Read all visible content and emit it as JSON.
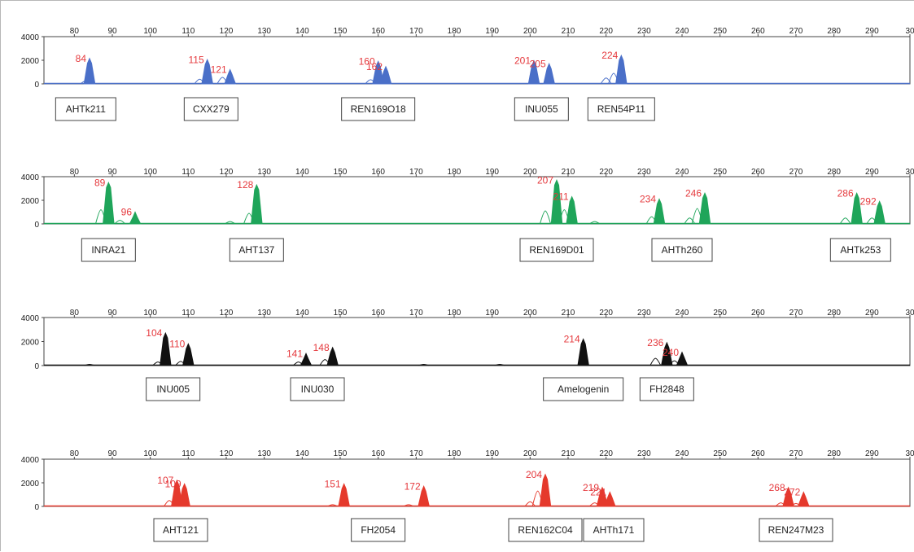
{
  "chart_data": [
    {
      "type": "area",
      "color": "#4a6fc8",
      "xlim": [
        72,
        300
      ],
      "ylim": [
        0,
        4000
      ],
      "xticks": [
        "80",
        "90",
        "100",
        "110",
        "120",
        "130",
        "140",
        "150",
        "160",
        "170",
        "180",
        "190",
        "200",
        "210",
        "220",
        "230",
        "240",
        "250",
        "260",
        "270",
        "280",
        "290",
        "30"
      ],
      "yticks": [
        "4000",
        "2000",
        "0"
      ],
      "peaks": [
        {
          "x": 84,
          "label": "84",
          "height": 2150,
          "filled": true
        },
        {
          "x": 115,
          "label": "115",
          "height": 2050,
          "filled": true
        },
        {
          "x": 121,
          "label": "121",
          "height": 1200,
          "filled": true
        },
        {
          "x": 160,
          "label": "160",
          "height": 1900,
          "filled": true
        },
        {
          "x": 162,
          "label": "162",
          "height": 1450,
          "filled": true
        },
        {
          "x": 201,
          "label": "201",
          "height": 1950,
          "filled": true
        },
        {
          "x": 205,
          "label": "205",
          "height": 1700,
          "filled": true
        },
        {
          "x": 224,
          "label": "224",
          "height": 2400,
          "filled": true
        }
      ],
      "minor_peaks": [
        {
          "x": 83,
          "height": 250
        },
        {
          "x": 113,
          "height": 400
        },
        {
          "x": 119,
          "height": 550
        },
        {
          "x": 158,
          "height": 350
        },
        {
          "x": 222,
          "height": 900
        },
        {
          "x": 220,
          "height": 500
        }
      ],
      "markers": [
        {
          "label": "AHTk211",
          "x": 83
        },
        {
          "label": "CXX279",
          "x": 116
        },
        {
          "label": "REN169O18",
          "x": 160
        },
        {
          "label": "INU055",
          "x": 203
        },
        {
          "label": "REN54P11",
          "x": 224
        }
      ]
    },
    {
      "type": "area",
      "color": "#1fa55a",
      "xlim": [
        72,
        300
      ],
      "ylim": [
        0,
        4000
      ],
      "xticks": [
        "80",
        "90",
        "100",
        "110",
        "120",
        "130",
        "140",
        "150",
        "160",
        "170",
        "180",
        "190",
        "200",
        "210",
        "220",
        "230",
        "240",
        "250",
        "260",
        "270",
        "280",
        "290",
        "30"
      ],
      "yticks": [
        "4000",
        "2000",
        "0"
      ],
      "peaks": [
        {
          "x": 89,
          "label": "89",
          "height": 3500,
          "filled": true
        },
        {
          "x": 96,
          "label": "96",
          "height": 1000,
          "filled": true
        },
        {
          "x": 128,
          "label": "128",
          "height": 3300,
          "filled": true
        },
        {
          "x": 207,
          "label": "207",
          "height": 3700,
          "filled": true
        },
        {
          "x": 211,
          "label": "211",
          "height": 2300,
          "filled": true
        },
        {
          "x": 234,
          "label": "234",
          "height": 2100,
          "filled": true
        },
        {
          "x": 246,
          "label": "246",
          "height": 2600,
          "filled": true
        },
        {
          "x": 286,
          "label": "286",
          "height": 2600,
          "filled": true
        },
        {
          "x": 292,
          "label": "292",
          "height": 1900,
          "filled": true
        }
      ],
      "minor_peaks": [
        {
          "x": 87,
          "height": 1200
        },
        {
          "x": 92,
          "height": 300
        },
        {
          "x": 126,
          "height": 900
        },
        {
          "x": 121,
          "height": 200
        },
        {
          "x": 204,
          "height": 1100
        },
        {
          "x": 209,
          "height": 1200
        },
        {
          "x": 232,
          "height": 600
        },
        {
          "x": 244,
          "height": 1300
        },
        {
          "x": 242,
          "height": 500
        },
        {
          "x": 283,
          "height": 500
        },
        {
          "x": 290,
          "height": 500
        },
        {
          "x": 217,
          "height": 200
        }
      ],
      "markers": [
        {
          "label": "INRA21",
          "x": 89
        },
        {
          "label": "AHT137",
          "x": 128
        },
        {
          "label": "REN169D01",
          "x": 207
        },
        {
          "label": "AHTh260",
          "x": 240
        },
        {
          "label": "AHTk253",
          "x": 287
        }
      ]
    },
    {
      "type": "area",
      "color": "#111111",
      "xlim": [
        72,
        300
      ],
      "ylim": [
        0,
        4000
      ],
      "xticks": [
        "80",
        "90",
        "100",
        "110",
        "120",
        "130",
        "140",
        "150",
        "160",
        "170",
        "180",
        "190",
        "200",
        "210",
        "220",
        "230",
        "240",
        "250",
        "260",
        "270",
        "280",
        "290",
        "30"
      ],
      "yticks": [
        "4000",
        "2000",
        "0"
      ],
      "peaks": [
        {
          "x": 104,
          "label": "104",
          "height": 2700,
          "filled": true
        },
        {
          "x": 110,
          "label": "110",
          "height": 1800,
          "filled": true
        },
        {
          "x": 141,
          "label": "141",
          "height": 1000,
          "filled": true
        },
        {
          "x": 148,
          "label": "148",
          "height": 1500,
          "filled": true
        },
        {
          "x": 214,
          "label": "214",
          "height": 2200,
          "filled": true
        },
        {
          "x": 236,
          "label": "236",
          "height": 1900,
          "filled": true
        },
        {
          "x": 240,
          "label": "240",
          "height": 1100,
          "filled": true
        }
      ],
      "minor_peaks": [
        {
          "x": 102,
          "height": 300
        },
        {
          "x": 108,
          "height": 350
        },
        {
          "x": 139,
          "height": 300
        },
        {
          "x": 146,
          "height": 500
        },
        {
          "x": 233,
          "height": 600
        },
        {
          "x": 238,
          "height": 400
        },
        {
          "x": 84,
          "height": 100
        },
        {
          "x": 172,
          "height": 100
        },
        {
          "x": 192,
          "height": 100
        }
      ],
      "markers": [
        {
          "label": "INU005",
          "x": 106
        },
        {
          "label": "INU030",
          "x": 144
        },
        {
          "label": "Amelogenin",
          "x": 214
        },
        {
          "label": "FH2848",
          "x": 236
        }
      ]
    },
    {
      "type": "area",
      "color": "#e5392c",
      "xlim": [
        72,
        300
      ],
      "ylim": [
        0,
        4000
      ],
      "xticks": [
        "80",
        "90",
        "100",
        "110",
        "120",
        "130",
        "140",
        "150",
        "160",
        "170",
        "180",
        "190",
        "200",
        "210",
        "220",
        "230",
        "240",
        "250",
        "260",
        "270",
        "280",
        "290",
        "30"
      ],
      "yticks": [
        "4000",
        "2000",
        "0"
      ],
      "peaks": [
        {
          "x": 107,
          "label": "107",
          "height": 2200,
          "filled": true
        },
        {
          "x": 109,
          "label": "109",
          "height": 1900,
          "filled": true
        },
        {
          "x": 151,
          "label": "151",
          "height": 1900,
          "filled": true
        },
        {
          "x": 172,
          "label": "172",
          "height": 1700,
          "filled": true
        },
        {
          "x": 204,
          "label": "204",
          "height": 2700,
          "filled": true
        },
        {
          "x": 219,
          "label": "219",
          "height": 1600,
          "filled": true
        },
        {
          "x": 221,
          "label": "221",
          "height": 1200,
          "filled": true
        },
        {
          "x": 268,
          "label": "268",
          "height": 1600,
          "filled": true
        },
        {
          "x": 272,
          "label": "272",
          "height": 1200,
          "filled": true
        }
      ],
      "minor_peaks": [
        {
          "x": 105,
          "height": 500
        },
        {
          "x": 202,
          "height": 1300
        },
        {
          "x": 200,
          "height": 400
        },
        {
          "x": 217,
          "height": 300
        },
        {
          "x": 266,
          "height": 300
        },
        {
          "x": 270,
          "height": 250
        },
        {
          "x": 148,
          "height": 150
        },
        {
          "x": 168,
          "height": 150
        }
      ],
      "markers": [
        {
          "label": "AHT121",
          "x": 108
        },
        {
          "label": "FH2054",
          "x": 160
        },
        {
          "label": "REN162C04",
          "x": 204
        },
        {
          "label": "AHTh171",
          "x": 222
        },
        {
          "label": "REN247M23",
          "x": 270
        }
      ]
    }
  ]
}
